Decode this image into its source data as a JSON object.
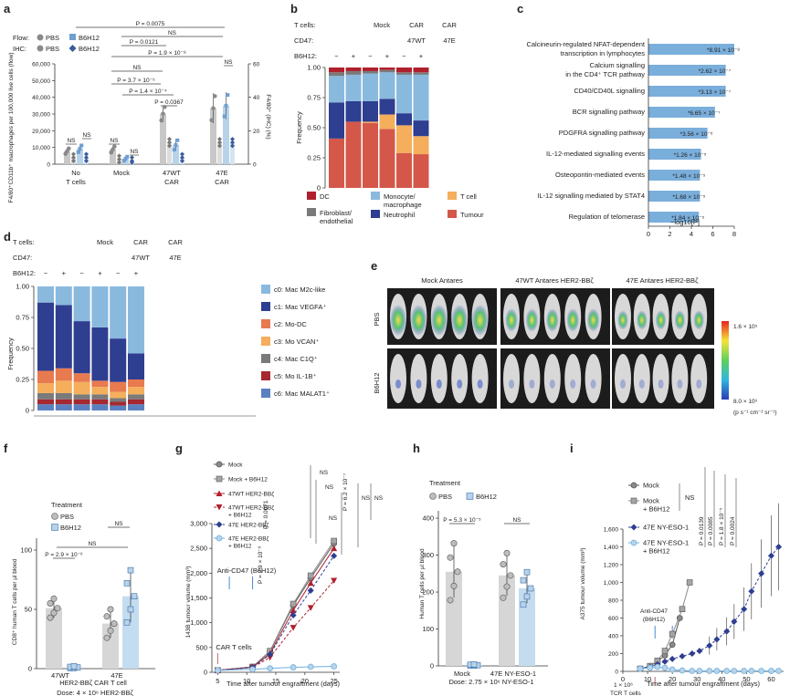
{
  "panels": {
    "a": {
      "letter": "a",
      "legend": {
        "flow_label": "Flow:",
        "ihc_label": "IHC:",
        "pbs": "PBS",
        "b6h12": "B6H12"
      },
      "ylabel": "F4/80⁺CD11b⁺ macrophages per 100,000 live cells (flow)",
      "y2label": "F4/80⁺ (IHC) (%)",
      "yticks": [
        "0",
        "10,000",
        "20,000",
        "30,000",
        "40,000",
        "50,000",
        "60,000"
      ],
      "y2ticks": [
        "0",
        "20",
        "40",
        "60"
      ],
      "groups": [
        "No T cells",
        "Mock",
        "47WT CAR",
        "47E CAR"
      ],
      "group_lines": [
        [
          "No",
          "T cells"
        ],
        [
          "Mock",
          ""
        ],
        [
          "47WT",
          "CAR"
        ],
        [
          "47E",
          "CAR"
        ]
      ],
      "stats": [
        "P = 0.0075",
        "NS",
        "P = 0.0121",
        "P = 1.9 × 10⁻⁸",
        "NS",
        "NS",
        "P = 3.7 × 10⁻⁵",
        "P = 1.4 × 10⁻⁴",
        "P = 0.0367",
        "NS",
        "NS",
        "NS",
        "NS"
      ],
      "colors": {
        "pbs": "#c8c8c8",
        "b6h12": "#b7d3ea",
        "pbs_dot": "#8a8a8a",
        "b6h12_dot": "#6f9fcf"
      }
    },
    "b": {
      "letter": "b",
      "rowlabels": [
        "T cells:",
        "CD47:",
        "B6H12:"
      ],
      "header": [
        "Mock",
        "CAR",
        "CAR",
        "47WT",
        "47E"
      ],
      "signs": [
        "−",
        "+",
        "−",
        "+",
        "−",
        "+"
      ],
      "ylabel": "Frequency",
      "yticks": [
        "0",
        "0.25",
        "0.50",
        "0.75",
        "1.00"
      ],
      "legend": [
        "DC",
        "Monocyte/ macrophage",
        "T cell",
        "Fibroblast/ endothelial",
        "Neutrophil",
        "Tumour"
      ]
    },
    "c": {
      "letter": "c",
      "xlabel": "−log10[P]",
      "xticks": [
        "0",
        "2",
        "4",
        "6",
        "8"
      ],
      "bars": [
        {
          "label": "Calcineurin-regulated NFAT-dependent transcription in lymphocytes",
          "value": 8.0,
          "p": "*8.91 × 10⁻⁸"
        },
        {
          "label": "Calcium signalling in the CD4⁺ TCR pathway",
          "value": 7.2,
          "p": "*2.62 × 10⁻⁷"
        },
        {
          "label": "CD40/CD40L signalling",
          "value": 7.2,
          "p": "*3.13 × 10⁻⁷"
        },
        {
          "label": "BCR signalling pathway",
          "value": 6.2,
          "p": "*6.65 × 10⁻⁷"
        },
        {
          "label": "PDGFRA signalling pathway",
          "value": 5.5,
          "p": "*3.56 × 10⁻⁶"
        },
        {
          "label": "IL-12-mediated signalling events",
          "value": 4.9,
          "p": "*1.26 × 10⁻⁵"
        },
        {
          "label": "Osteopontin-mediated events",
          "value": 4.8,
          "p": "*1.48 × 10⁻⁵"
        },
        {
          "label": "IL-12 signalling mediated by STAT4",
          "value": 4.8,
          "p": "*1.68 × 10⁻⁵"
        },
        {
          "label": "Regulation of telomerase",
          "value": 4.7,
          "p": "*1.84 × 10⁻⁵"
        }
      ]
    },
    "d": {
      "letter": "d",
      "rowlabels": [
        "T cells:",
        "CD47:",
        "B6H12:"
      ],
      "header": [
        "Mock",
        "CAR",
        "CAR",
        "47WT",
        "47E"
      ],
      "signs": [
        "−",
        "+",
        "−",
        "+",
        "−",
        "+"
      ],
      "ylabel": "Frequency",
      "yticks": [
        "0",
        "0.25",
        "0.50",
        "0.75",
        "1.00"
      ],
      "legend": [
        "c0: Mac M2c-like",
        "c1: Mac VEGFA⁺",
        "c2: Mo-DC",
        "c3: Mo VCAN⁺",
        "c4: Mac C1Q⁺",
        "c5: Mo IL-1B⁺",
        "c6: Mac MALAT1⁺"
      ]
    },
    "e": {
      "letter": "e",
      "cols": [
        "Mock Antares",
        "47WT Antares HER2-BBζ",
        "47E Antares HER2-BBζ"
      ],
      "rows": [
        "PBS",
        "B6H12"
      ],
      "scale_max": "1.6 × 10⁵",
      "scale_min": "8.0 × 10³",
      "scale_unit": "(p s⁻¹ cm⁻² sr⁻¹)"
    },
    "f": {
      "letter": "f",
      "legend_title": "Treatment",
      "legend": [
        "PBS",
        "B6H12"
      ],
      "ylabel": "CD8⁺ human T cells per µl blood",
      "yticks": [
        "0",
        "50",
        "100"
      ],
      "groups": [
        "47WT",
        "47E"
      ],
      "stats": [
        "P = 2.9 × 10⁻⁶",
        "NS",
        "NS"
      ],
      "xlabel": "HER2-BBζ CAR T cell",
      "dose": "Dose: 4 × 10⁶ HER2-BBζ"
    },
    "g": {
      "letter": "g",
      "legend": [
        "Mock",
        "Mock + B6H12",
        "47WT HER2-BBζ",
        "47WT HER2-BBζ + B6H12",
        "47E HER2-BBζ",
        "47E HER2-BBζ + B6H12"
      ],
      "ylabel": "143B tumour volume (mm³)",
      "yticks": [
        "0",
        "500",
        "1,000",
        "1,500",
        "2,000",
        "2,500",
        "3,000"
      ],
      "xticks": [
        "5",
        "10",
        "15",
        "20",
        "25"
      ],
      "xlabel": "Time after tumour engraftment (days)",
      "annot_antibody": "Anti-CD47 (B6H12)",
      "annot_car": "CAR T cells",
      "stats": [
        "NS",
        "NS",
        "P = 0.0071",
        "P = 2.9 × 10⁻⁹",
        "NS",
        "P = 6.2 × 10⁻⁷",
        "NS",
        "NS"
      ]
    },
    "h": {
      "letter": "h",
      "legend_title": "Treatment",
      "legend": [
        "PBS",
        "B6H12"
      ],
      "ylabel": "Human T cells per µl blood",
      "yticks": [
        "0",
        "100",
        "200",
        "300",
        "400"
      ],
      "groups": [
        "Mock",
        "47E NY-ESO-1"
      ],
      "stats": [
        "P = 5.3 × 10⁻⁵",
        "NS"
      ],
      "dose": "Dose: 2.75 × 10⁶ NY-ESO-1"
    },
    "i": {
      "letter": "i",
      "legend": [
        "Mock",
        "Mock + B6H12",
        "47E NY-ESO-1",
        "47E NY-ESO-1 + B6H12"
      ],
      "ylabel": "A375 tumour volume (mm³)",
      "yticks": [
        "0",
        "200",
        "400",
        "600",
        "800",
        "1,000",
        "1,200",
        "1,400",
        "1,600"
      ],
      "xticks": [
        "0",
        "10",
        "20",
        "30",
        "40",
        "50",
        "60"
      ],
      "xlabel": "Time after tumour engraftment (days)",
      "annot_antibody": "Anti-CD47 (B6H12)",
      "annot_tcell": "1 × 10⁶ TCR T cells",
      "stats": [
        "NS",
        "P = 0.0139",
        "P = 0.0085",
        "P = 1.8 × 10⁻⁵",
        "P = 0.0024"
      ]
    }
  },
  "chart_data": [
    {
      "panel": "a",
      "type": "bar",
      "categories": [
        "No T cells PBS",
        "No T cells B6H12",
        "Mock PBS",
        "Mock B6H12",
        "47WT CAR PBS",
        "47WT CAR B6H12",
        "47E CAR PBS",
        "47E CAR B6H12"
      ],
      "series": [
        {
          "name": "Flow",
          "values": [
            7800,
            9200,
            8800,
            3300,
            30200,
            11500,
            33500,
            35000
          ]
        },
        {
          "name": "IHC",
          "values": [
            4,
            4,
            3,
            2,
            13,
            4,
            13,
            13
          ]
        }
      ],
      "ylim": [
        0,
        60000
      ],
      "y2lim": [
        0,
        60
      ]
    },
    {
      "panel": "b",
      "type": "bar",
      "categories": [
        "Mock −",
        "Mock +",
        "47WT −",
        "47WT +",
        "47E −",
        "47E +"
      ],
      "series": [
        {
          "name": "Tumour",
          "values": [
            0.41,
            0.55,
            0.54,
            0.49,
            0.29,
            0.28
          ]
        },
        {
          "name": "T cell",
          "values": [
            0.0,
            0.0,
            0.01,
            0.12,
            0.23,
            0.15
          ]
        },
        {
          "name": "Neutrophil",
          "values": [
            0.3,
            0.17,
            0.17,
            0.13,
            0.1,
            0.13
          ]
        },
        {
          "name": "Monocyte/macrophage",
          "values": [
            0.22,
            0.22,
            0.23,
            0.22,
            0.32,
            0.38
          ]
        },
        {
          "name": "Fibroblast/endothelial",
          "values": [
            0.03,
            0.03,
            0.02,
            0.02,
            0.02,
            0.02
          ]
        },
        {
          "name": "DC",
          "values": [
            0.04,
            0.03,
            0.03,
            0.02,
            0.04,
            0.04
          ]
        }
      ],
      "ylim": [
        0,
        1
      ]
    },
    {
      "panel": "c",
      "type": "bar",
      "categories": [
        "Calcineurin-regulated NFAT-dependent transcription in lymphocytes",
        "Calcium signalling in the CD4⁺ TCR pathway",
        "CD40/CD40L signalling",
        "BCR signalling pathway",
        "PDGFRA signalling pathway",
        "IL-12-mediated signalling events",
        "Osteopontin-mediated events",
        "IL-12 signalling mediated by STAT4",
        "Regulation of telomerase"
      ],
      "values": [
        8.0,
        7.2,
        7.2,
        6.2,
        5.5,
        4.9,
        4.8,
        4.8,
        4.7
      ],
      "xlabel": "−log10[P]",
      "xlim": [
        0,
        8
      ]
    },
    {
      "panel": "d",
      "type": "bar",
      "categories": [
        "Mock −",
        "Mock +",
        "47WT −",
        "47WT +",
        "47E −",
        "47E +"
      ],
      "series": [
        {
          "name": "c6: Mac MALAT1⁺",
          "values": [
            0.05,
            0.05,
            0.05,
            0.05,
            0.04,
            0.05
          ]
        },
        {
          "name": "c5: Mo IL-1B⁺",
          "values": [
            0.04,
            0.04,
            0.04,
            0.04,
            0.03,
            0.04
          ]
        },
        {
          "name": "c4: Mac C1Q⁺",
          "values": [
            0.05,
            0.05,
            0.04,
            0.04,
            0.03,
            0.04
          ]
        },
        {
          "name": "c3: Mo VCAN⁺",
          "values": [
            0.08,
            0.1,
            0.1,
            0.06,
            0.05,
            0.06
          ]
        },
        {
          "name": "c2: Mo-DC",
          "values": [
            0.1,
            0.1,
            0.07,
            0.05,
            0.08,
            0.06
          ]
        },
        {
          "name": "c1: Mac VEGFA⁺",
          "values": [
            0.55,
            0.51,
            0.42,
            0.43,
            0.35,
            0.21
          ]
        },
        {
          "name": "c0: Mac M2c-like",
          "values": [
            0.13,
            0.15,
            0.28,
            0.33,
            0.42,
            0.54
          ]
        }
      ],
      "ylim": [
        0,
        1
      ]
    },
    {
      "panel": "f",
      "type": "bar",
      "categories": [
        "47WT PBS",
        "47WT B6H12",
        "47E PBS",
        "47E B6H12"
      ],
      "values": [
        51,
        1,
        38,
        61
      ],
      "ylim": [
        0,
        110
      ]
    },
    {
      "panel": "g",
      "type": "line",
      "x": [
        5,
        11,
        14,
        18,
        21,
        25
      ],
      "series": [
        {
          "name": "Mock",
          "values": [
            40,
            110,
            420,
            1350,
            1900,
            2600
          ]
        },
        {
          "name": "Mock + B6H12",
          "values": [
            40,
            110,
            430,
            1380,
            1950,
            2650
          ]
        },
        {
          "name": "47WT HER2-BBζ",
          "values": [
            40,
            100,
            380,
            1250,
            1800,
            2500
          ]
        },
        {
          "name": "47WT HER2-BBζ + B6H12",
          "values": [
            40,
            100,
            300,
            900,
            1300,
            1850
          ]
        },
        {
          "name": "47E HER2-BBζ",
          "values": [
            40,
            100,
            360,
            1150,
            1650,
            2350
          ]
        },
        {
          "name": "47E HER2-BBζ + B6H12",
          "values": [
            40,
            60,
            80,
            100,
            110,
            120
          ]
        }
      ],
      "ylim": [
        0,
        3000
      ],
      "xlim": [
        4,
        26
      ]
    },
    {
      "panel": "h",
      "type": "bar",
      "categories": [
        "Mock PBS",
        "Mock B6H12",
        "47E NY-ESO-1 PBS",
        "47E NY-ESO-1 B6H12"
      ],
      "values": [
        255,
        2,
        245,
        210
      ],
      "ylim": [
        0,
        420
      ]
    },
    {
      "panel": "i",
      "type": "line",
      "series": [
        {
          "name": "Mock",
          "x": [
            7,
            11,
            14,
            17,
            20,
            23
          ],
          "values": [
            30,
            60,
            110,
            180,
            300,
            600
          ]
        },
        {
          "name": "Mock + B6H12",
          "x": [
            7,
            11,
            14,
            17,
            20,
            24,
            27
          ],
          "values": [
            30,
            60,
            120,
            230,
            420,
            700,
            1000
          ]
        },
        {
          "name": "47E NY-ESO-1",
          "x": [
            7,
            11,
            14,
            17,
            20,
            24,
            28,
            31,
            35,
            38,
            42,
            45,
            49,
            52,
            56,
            60,
            63
          ],
          "values": [
            30,
            50,
            80,
            110,
            140,
            170,
            200,
            230,
            290,
            360,
            450,
            560,
            700,
            900,
            1100,
            1300,
            1400
          ]
        },
        {
          "name": "47E NY-ESO-1 + B6H12",
          "x": [
            7,
            11,
            14,
            17,
            20,
            24,
            28,
            31,
            35,
            38,
            42,
            45,
            49,
            52,
            56,
            60,
            63
          ],
          "values": [
            30,
            40,
            50,
            40,
            20,
            10,
            5,
            5,
            5,
            5,
            5,
            5,
            5,
            5,
            5,
            5,
            5
          ]
        }
      ],
      "ylim": [
        0,
        1600
      ],
      "xlim": [
        0,
        65
      ]
    }
  ]
}
